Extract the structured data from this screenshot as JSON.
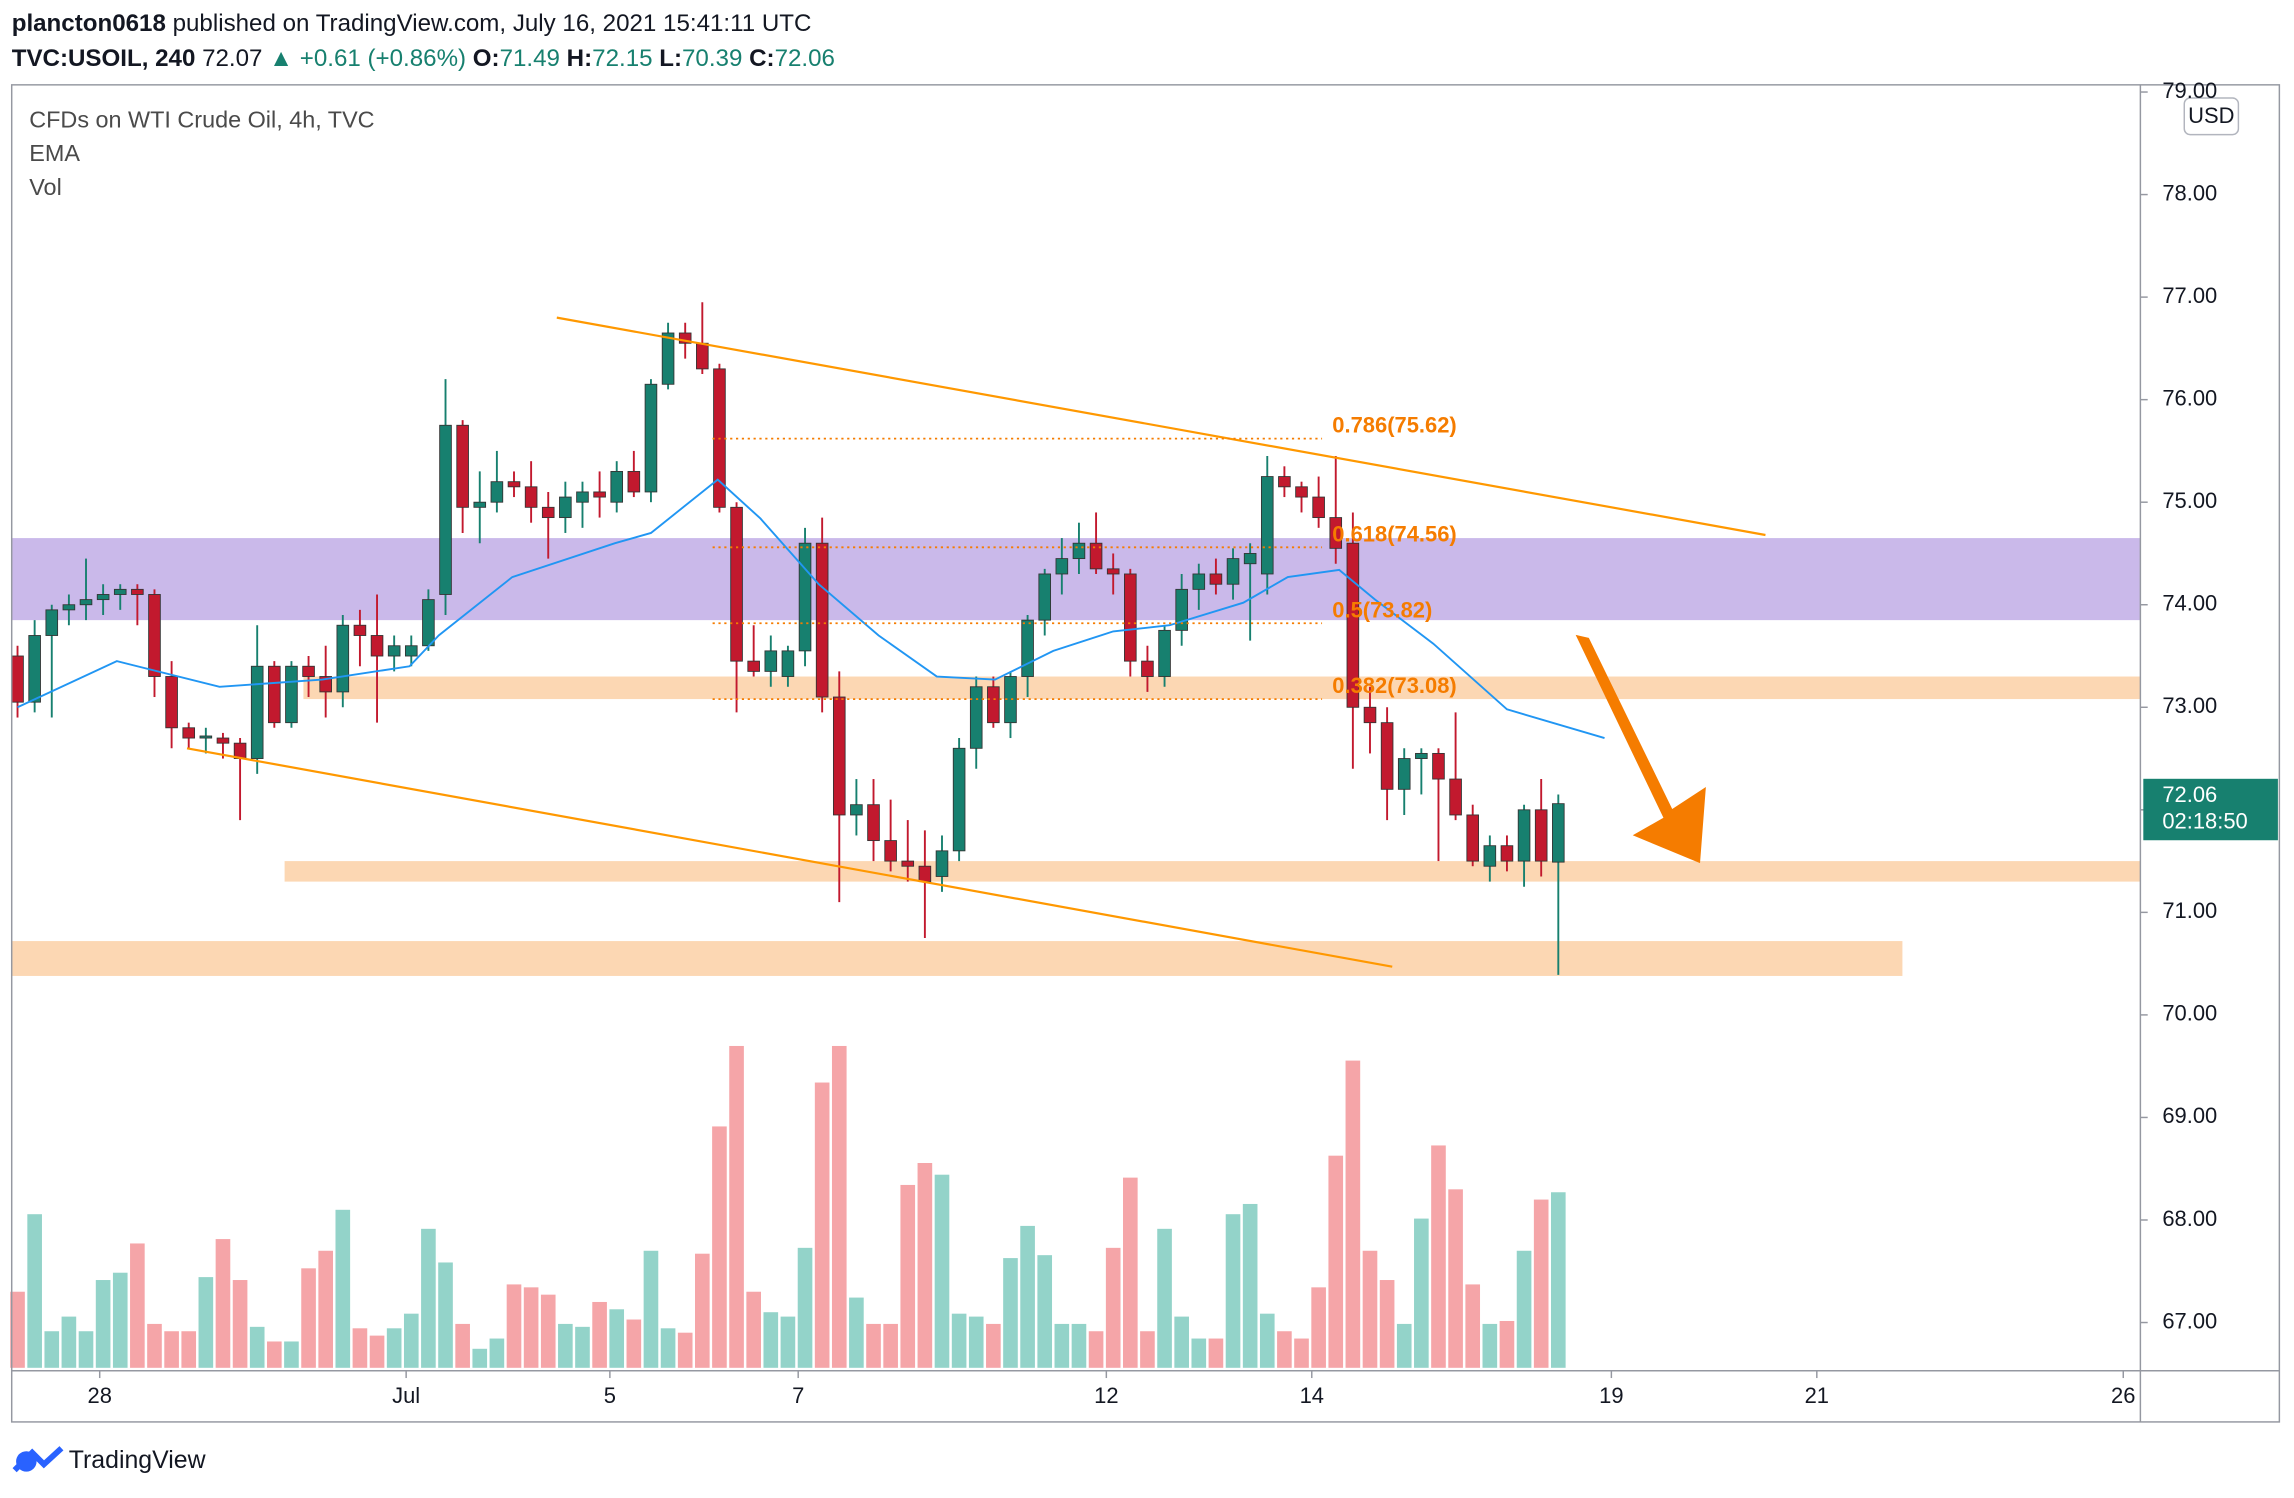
{
  "header": {
    "author": "plancton0618",
    "published": "published on TradingView.com, July 16, 2021 15:41:11 UTC",
    "symbol": "TVC:USOIL, 240",
    "last": "72.07",
    "arrow": "▲",
    "change": "+0.61 (+0.86%)",
    "o_label": "O:",
    "o": "71.49",
    "h_label": "H:",
    "h": "72.15",
    "l_label": "L:",
    "l": "70.39",
    "c_label": "C:",
    "c": "72.06"
  },
  "footer": {
    "brand": "TradingView"
  },
  "chart_data": {
    "type": "candlestick",
    "title": "CFDs on WTI Crude Oil, 4h, TVC",
    "indicators": [
      "EMA",
      "Vol"
    ],
    "currency": "USD",
    "price_label": {
      "price": "72.06",
      "countdown": "02:18:50"
    },
    "up_color": "#17806f",
    "down_color": "#c2192e",
    "volume_up_color": "#93d3c9",
    "volume_down_color": "#f5a5a8",
    "xlim": [
      -0.34,
      124.0
    ],
    "ylim": [
      66.53,
      79.07
    ],
    "yticks": [
      {
        "value": 67,
        "label": "67.00"
      },
      {
        "value": 68,
        "label": "68.00"
      },
      {
        "value": 69,
        "label": "69.00"
      },
      {
        "value": 70,
        "label": "70.00"
      },
      {
        "value": 71,
        "label": "71.00"
      },
      {
        "value": 72,
        "label": "72.00"
      },
      {
        "value": 73,
        "label": "73.00"
      },
      {
        "value": 74,
        "label": "74.00"
      },
      {
        "value": 75,
        "label": "75.00"
      },
      {
        "value": 76,
        "label": "76.00"
      },
      {
        "value": 77,
        "label": "77.00"
      },
      {
        "value": 78,
        "label": "78.00"
      },
      {
        "value": 79,
        "label": "79.00"
      }
    ],
    "xticks": [
      {
        "value": 4.8,
        "label": "28"
      },
      {
        "value": 22.7,
        "label": "Jul"
      },
      {
        "value": 34.6,
        "label": "5"
      },
      {
        "value": 45.6,
        "label": "7"
      },
      {
        "value": 63.6,
        "label": "12"
      },
      {
        "value": 75.6,
        "label": "14"
      },
      {
        "value": 93.1,
        "label": "19"
      },
      {
        "value": 105.1,
        "label": "21"
      },
      {
        "value": 123.0,
        "label": "26"
      }
    ],
    "candles": {
      "x": [
        0,
        1,
        2,
        3,
        4,
        5,
        6,
        7,
        8,
        9,
        10,
        11,
        12,
        13,
        14,
        15,
        16,
        17,
        18,
        19,
        20,
        21,
        22,
        23,
        24,
        25,
        26,
        27,
        28,
        29,
        30,
        31,
        32,
        33,
        34,
        35,
        36,
        37,
        38,
        39,
        40,
        41,
        42,
        43,
        44,
        45,
        46,
        47,
        48,
        49,
        50,
        51,
        52,
        53,
        54,
        55,
        56,
        57,
        58,
        59,
        60,
        61,
        62,
        63,
        64,
        65,
        66,
        67,
        68,
        69,
        70,
        71,
        72,
        73,
        74,
        75,
        76,
        77,
        78,
        79,
        80,
        81,
        82,
        83,
        84,
        85,
        86,
        87,
        88,
        89,
        90
      ],
      "open": [
        73.5,
        73.05,
        73.7,
        73.95,
        74.0,
        74.05,
        74.1,
        74.15,
        74.1,
        73.3,
        72.8,
        72.7,
        72.7,
        72.65,
        72.5,
        73.4,
        72.85,
        73.4,
        73.3,
        73.15,
        73.8,
        73.7,
        73.5,
        73.5,
        73.6,
        74.1,
        75.75,
        74.95,
        75.0,
        75.2,
        75.15,
        74.95,
        74.85,
        75.0,
        75.1,
        75.0,
        75.3,
        75.1,
        76.15,
        76.65,
        76.55,
        76.3,
        74.95,
        73.45,
        73.35,
        73.3,
        73.55,
        74.6,
        73.1,
        71.95,
        72.05,
        71.7,
        71.5,
        71.45,
        71.35,
        71.6,
        72.6,
        73.2,
        72.85,
        73.3,
        73.85,
        74.3,
        74.45,
        74.6,
        74.35,
        74.3,
        73.45,
        73.3,
        73.75,
        74.15,
        74.3,
        74.2,
        74.4,
        74.3,
        75.25,
        75.15,
        75.05,
        74.85,
        74.6,
        73.0,
        72.85,
        72.2,
        72.5,
        72.55,
        72.3,
        71.95,
        71.45,
        71.65,
        71.5,
        72.0,
        71.49
      ],
      "high": [
        73.6,
        73.85,
        74.0,
        74.1,
        74.45,
        74.2,
        74.2,
        74.2,
        74.15,
        73.45,
        72.85,
        72.8,
        72.75,
        72.7,
        73.8,
        73.45,
        73.45,
        73.5,
        73.6,
        73.9,
        73.95,
        74.1,
        73.7,
        73.7,
        74.15,
        76.2,
        75.8,
        75.3,
        75.5,
        75.3,
        75.4,
        75.1,
        75.2,
        75.2,
        75.3,
        75.4,
        75.5,
        76.2,
        76.75,
        76.75,
        76.95,
        76.35,
        75.0,
        73.8,
        73.7,
        73.6,
        74.75,
        74.85,
        73.35,
        72.3,
        72.3,
        72.1,
        71.9,
        71.8,
        71.75,
        72.7,
        73.3,
        73.3,
        73.35,
        73.9,
        74.35,
        74.65,
        74.8,
        74.9,
        74.5,
        74.35,
        73.6,
        73.8,
        74.3,
        74.4,
        74.45,
        74.55,
        74.6,
        75.45,
        75.35,
        75.2,
        75.25,
        75.45,
        74.9,
        73.2,
        73.0,
        72.6,
        72.6,
        72.6,
        72.95,
        72.05,
        71.75,
        71.75,
        72.05,
        72.3,
        72.15
      ],
      "low": [
        72.9,
        72.95,
        72.9,
        73.8,
        73.85,
        73.9,
        73.95,
        73.8,
        73.1,
        72.6,
        72.6,
        72.55,
        72.5,
        71.9,
        72.35,
        72.8,
        72.8,
        73.1,
        72.9,
        73.0,
        73.4,
        72.85,
        73.35,
        73.4,
        73.55,
        73.9,
        74.7,
        74.6,
        74.9,
        75.05,
        74.8,
        74.45,
        74.7,
        74.75,
        74.85,
        74.9,
        75.05,
        75.0,
        76.1,
        76.4,
        76.25,
        74.9,
        72.95,
        73.3,
        73.2,
        73.2,
        73.4,
        72.95,
        71.1,
        71.75,
        71.5,
        71.4,
        71.3,
        70.75,
        71.2,
        71.5,
        72.4,
        72.8,
        72.7,
        73.1,
        73.7,
        74.1,
        74.3,
        74.3,
        74.1,
        73.3,
        73.15,
        73.2,
        73.6,
        73.95,
        74.1,
        74.05,
        73.65,
        74.1,
        75.05,
        74.9,
        74.75,
        74.4,
        72.4,
        72.55,
        71.9,
        71.95,
        72.15,
        71.5,
        71.9,
        71.45,
        71.3,
        71.4,
        71.25,
        71.35,
        70.39
      ],
      "close": [
        73.05,
        73.7,
        73.95,
        74.0,
        74.05,
        74.1,
        74.15,
        74.1,
        73.3,
        72.8,
        72.7,
        72.72,
        72.65,
        72.5,
        73.4,
        72.85,
        73.4,
        73.3,
        73.15,
        73.8,
        73.7,
        73.5,
        73.6,
        73.6,
        74.05,
        75.75,
        74.95,
        75.0,
        75.2,
        75.15,
        74.95,
        74.85,
        75.05,
        75.1,
        75.05,
        75.3,
        75.1,
        76.15,
        76.65,
        76.55,
        76.3,
        74.95,
        73.45,
        73.35,
        73.55,
        73.55,
        74.6,
        73.1,
        71.95,
        72.05,
        71.7,
        71.5,
        71.45,
        71.3,
        71.6,
        72.6,
        73.2,
        72.85,
        73.3,
        73.85,
        74.3,
        74.45,
        74.6,
        74.35,
        74.3,
        73.45,
        73.3,
        73.75,
        74.15,
        74.3,
        74.2,
        74.45,
        74.5,
        75.25,
        75.15,
        75.05,
        74.85,
        74.55,
        73.0,
        72.85,
        72.2,
        72.5,
        72.55,
        72.3,
        71.95,
        71.5,
        71.65,
        71.5,
        72.0,
        71.5,
        72.06
      ],
      "volume": [
        52,
        105,
        25,
        35,
        25,
        60,
        65,
        85,
        30,
        25,
        25,
        62,
        88,
        60,
        28,
        18,
        18,
        68,
        80,
        108,
        27,
        22,
        27,
        37,
        95,
        72,
        30,
        13,
        20,
        57,
        55,
        50,
        30,
        28,
        45,
        40,
        33,
        80,
        27,
        24,
        78,
        165,
        220,
        52,
        38,
        35,
        82,
        195,
        220,
        48,
        30,
        30,
        125,
        140,
        132,
        37,
        35,
        30,
        75,
        97,
        77,
        30,
        30,
        25,
        82,
        130,
        25,
        95,
        35,
        20,
        20,
        105,
        112,
        37,
        25,
        20,
        55,
        145,
        210,
        80,
        60,
        30,
        102,
        152,
        122,
        57,
        30,
        32,
        80,
        115,
        120
      ]
    },
    "ema": {
      "color": "#2196f3",
      "x": [
        0,
        5.8,
        11.8,
        17.8,
        22.9,
        24.6,
        28.9,
        34.9,
        37.0,
        40.9,
        43.4,
        46.8,
        50.3,
        53.7,
        57.1,
        60.5,
        64.0,
        67.3,
        71.6,
        74.2,
        77.2,
        79.3,
        82.7,
        87.0,
        92.7
      ],
      "y": [
        73.0,
        73.45,
        73.2,
        73.27,
        73.4,
        73.7,
        74.27,
        74.6,
        74.7,
        75.22,
        74.84,
        74.2,
        73.7,
        73.3,
        73.27,
        73.55,
        73.74,
        73.8,
        74.02,
        74.27,
        74.34,
        74.05,
        73.62,
        72.98,
        72.7
      ]
    },
    "zones": [
      {
        "x0": -0.34,
        "x1": 124.0,
        "y0": 73.85,
        "y1": 74.65,
        "color": "#b8a2e3"
      },
      {
        "x0": 16.7,
        "x1": 124.0,
        "y0": 73.08,
        "y1": 73.3,
        "color": "#fbc99a"
      },
      {
        "x0": 15.6,
        "x1": 124.0,
        "y0": 71.3,
        "y1": 71.5,
        "color": "#fbc99a"
      },
      {
        "x0": -0.34,
        "x1": 110.1,
        "y0": 70.38,
        "y1": 70.72,
        "color": "#fbc99a"
      }
    ],
    "trend_lines": [
      {
        "x0": 31.5,
        "y0": 76.8,
        "x1": 102.1,
        "y1": 74.68,
        "color": "#ff9800"
      },
      {
        "x0": 9.9,
        "y0": 72.6,
        "x1": 80.3,
        "y1": 70.47,
        "color": "#ff9800"
      }
    ],
    "fib": {
      "x0": 40.6,
      "x1": 76.2,
      "color": "#f57c00",
      "levels": [
        {
          "value": 75.62,
          "label": "0.786(75.62)"
        },
        {
          "value": 74.56,
          "label": "0.618(74.56)"
        },
        {
          "value": 73.82,
          "label": "0.5(73.82)"
        },
        {
          "value": 73.08,
          "label": "0.382(73.08)"
        }
      ]
    }
  }
}
